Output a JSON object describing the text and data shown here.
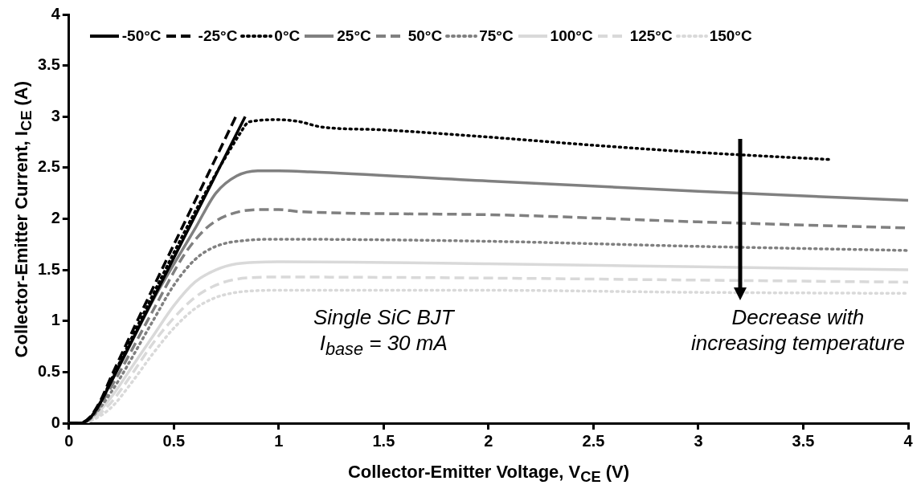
{
  "chart_data": {
    "type": "line",
    "xlabel": "Collector-Emitter Voltage, V$_{CE}$ (V)",
    "ylabel": "Collector-Emitter Current, I$_{CE}$ (A)",
    "xlim": [
      0,
      4
    ],
    "xticks": [
      0,
      0.5,
      1,
      1.5,
      2,
      2.5,
      3,
      3.5,
      4
    ],
    "ylim": [
      0,
      4
    ],
    "yticks": [
      0,
      0.5,
      1,
      1.5,
      2,
      2.5,
      3,
      3.5,
      4
    ],
    "grid": false,
    "legend": "top",
    "marker": "none",
    "annotations": [
      "Single SiC BJT",
      "I$_{base}$ = 30 mA",
      "Decrease with increasing temperature"
    ],
    "series": [
      {
        "name": "-50°C",
        "color": "#000000",
        "line_style": "solid",
        "x": [
          0,
          0.05,
          0.1,
          0.15,
          0.2,
          0.84
        ],
        "values": [
          0,
          0,
          0.05,
          0.2,
          0.4,
          3.0
        ]
      },
      {
        "name": "-25°C",
        "color": "#000000",
        "line_style": "dashed",
        "x": [
          0,
          0.05,
          0.1,
          0.15,
          0.2,
          0.8
        ],
        "values": [
          0,
          0,
          0.06,
          0.22,
          0.45,
          3.02
        ]
      },
      {
        "name": "0°C",
        "color": "#000000",
        "line_style": "dotted",
        "x": [
          0,
          0.05,
          0.1,
          0.15,
          0.2,
          0.82,
          0.86,
          1.0,
          1.1,
          1.2,
          1.5,
          2,
          2.5,
          3,
          3.63
        ],
        "values": [
          0,
          0,
          0.05,
          0.2,
          0.42,
          2.85,
          2.95,
          2.97,
          2.95,
          2.9,
          2.87,
          2.8,
          2.72,
          2.65,
          2.58
        ]
      },
      {
        "name": "25°C",
        "color": "#808080",
        "line_style": "solid",
        "x": [
          0,
          0.05,
          0.1,
          0.2,
          0.4,
          0.6,
          0.7,
          0.8,
          0.9,
          1.0,
          1.15,
          2,
          3,
          4
        ],
        "values": [
          0,
          0,
          0.05,
          0.4,
          1.2,
          1.9,
          2.25,
          2.42,
          2.47,
          2.47,
          2.46,
          2.37,
          2.27,
          2.18
        ]
      },
      {
        "name": "50°C",
        "color": "#808080",
        "line_style": "dashed",
        "x": [
          0,
          0.05,
          0.1,
          0.2,
          0.4,
          0.55,
          0.65,
          0.75,
          0.9,
          1.0,
          1.1,
          2,
          3,
          4
        ],
        "values": [
          0,
          0,
          0.04,
          0.35,
          1.1,
          1.65,
          1.9,
          2.03,
          2.09,
          2.09,
          2.07,
          2.04,
          1.97,
          1.91
        ]
      },
      {
        "name": "75°C",
        "color": "#808080",
        "line_style": "dotted",
        "x": [
          0,
          0.05,
          0.1,
          0.2,
          0.4,
          0.5,
          0.6,
          0.7,
          0.85,
          1.0,
          2,
          3,
          4
        ],
        "values": [
          0,
          0,
          0.04,
          0.3,
          1.0,
          1.35,
          1.6,
          1.73,
          1.79,
          1.8,
          1.78,
          1.73,
          1.69
        ]
      },
      {
        "name": "100°C",
        "color": "#d9d9d9",
        "line_style": "solid",
        "x": [
          0,
          0.05,
          0.1,
          0.2,
          0.3,
          0.4,
          0.5,
          0.6,
          0.7,
          0.8,
          1.0,
          2,
          3,
          4
        ],
        "values": [
          0,
          0,
          0.03,
          0.25,
          0.55,
          0.85,
          1.15,
          1.38,
          1.5,
          1.56,
          1.58,
          1.56,
          1.53,
          1.5
        ]
      },
      {
        "name": "125°C",
        "color": "#d9d9d9",
        "line_style": "dashed",
        "x": [
          0,
          0.05,
          0.1,
          0.2,
          0.3,
          0.4,
          0.5,
          0.6,
          0.7,
          0.8,
          1.0,
          2,
          3,
          4
        ],
        "values": [
          0,
          0,
          0.02,
          0.2,
          0.48,
          0.78,
          1.03,
          1.23,
          1.35,
          1.41,
          1.43,
          1.42,
          1.4,
          1.38
        ]
      },
      {
        "name": "150°C",
        "color": "#d9d9d9",
        "line_style": "dotted",
        "x": [
          0,
          0.05,
          0.1,
          0.2,
          0.3,
          0.4,
          0.5,
          0.6,
          0.7,
          0.8,
          1.0,
          2,
          3,
          4
        ],
        "values": [
          0,
          0,
          0.02,
          0.15,
          0.4,
          0.68,
          0.93,
          1.12,
          1.23,
          1.28,
          1.3,
          1.3,
          1.28,
          1.27
        ]
      }
    ]
  }
}
